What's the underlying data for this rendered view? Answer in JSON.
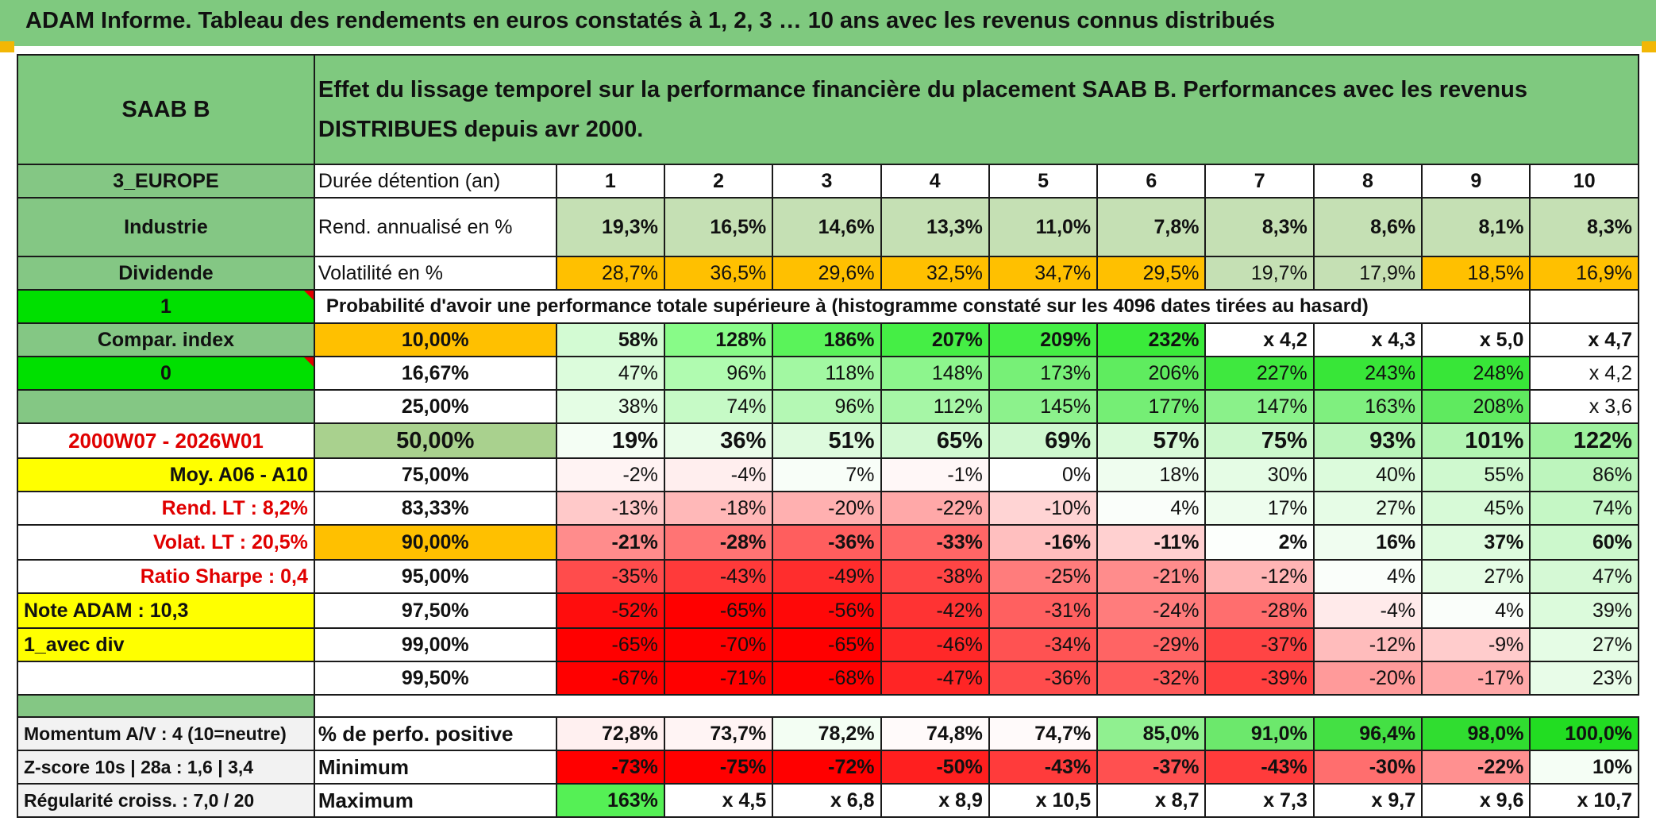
{
  "title": "ADAM Informe. Tableau des rendements en euros constatés à 1, 2, 3 … 10 ans avec les revenus connus distribués",
  "side": {
    "name": "SAAB B",
    "zone": "3_EUROPE",
    "sector": "Industrie",
    "dividend_label": "Dividende",
    "one": "1",
    "compar_label": "Compar. index",
    "zero": "0",
    "period": "2000W07 - 2026W01",
    "moy": "Moy. A06 - A10",
    "rend_lt": "Rend. LT :    8,2%",
    "volat_lt": "Volat. LT :    20,5%",
    "sharpe": "Ratio Sharpe :    0,4",
    "note": "Note ADAM : 10,3",
    "avec_div": "1_avec div",
    "momentum": "Momentum A/V : 4 (10=neutre)",
    "zscore": "Z-score 10s | 28a : 1,6 | 3,4",
    "regularite": "Régularité croiss. : 7,0 / 20"
  },
  "header_desc": "Effet du lissage temporel sur la performance financière du placement SAAB B. Performances avec les revenus DISTRIBUES depuis avr 2000.",
  "row_labels": {
    "duree": "Durée détention (an)",
    "rend": "Rend. annualisé en %",
    "vol": "Volatilité en %",
    "prob": "Probabilité d'avoir une performance totale supérieure à (histogramme constaté sur les 4096 dates tirées au hasard)",
    "pos": "% de perfo. positive",
    "min": "Minimum",
    "max": "Maximum"
  },
  "years": [
    "1",
    "2",
    "3",
    "4",
    "5",
    "6",
    "7",
    "8",
    "9",
    "10"
  ],
  "rend": [
    "19,3%",
    "16,5%",
    "14,6%",
    "13,3%",
    "11,0%",
    "7,8%",
    "8,3%",
    "8,6%",
    "8,1%",
    "8,3%"
  ],
  "vol": [
    "28,7%",
    "36,5%",
    "29,6%",
    "32,5%",
    "34,7%",
    "29,5%",
    "19,7%",
    "17,9%",
    "18,5%",
    "16,9%"
  ],
  "vol_colors": [
    "#ffc000",
    "#ffc000",
    "#ffc000",
    "#ffc000",
    "#ffc000",
    "#ffc000",
    "#c5e0b4",
    "#c5e0b4",
    "#ffc000",
    "#ffc000"
  ],
  "prob": [
    {
      "threshold": "10,00%",
      "values": [
        "58%",
        "128%",
        "186%",
        "207%",
        "209%",
        "232%",
        "x 4,2",
        "x 4,3",
        "x 5,0",
        "x 4,7"
      ],
      "colors": [
        "#d3fbd3",
        "#88fb88",
        "#5af35a",
        "#45ee45",
        "#45ee45",
        "#3aeb3a",
        "#ffffff",
        "#ffffff",
        "#ffffff",
        "#ffffff"
      ]
    },
    {
      "threshold": "16,67%",
      "values": [
        "47%",
        "96%",
        "118%",
        "148%",
        "173%",
        "206%",
        "227%",
        "243%",
        "248%",
        "x 4,2"
      ],
      "colors": [
        "#dcfcdc",
        "#b0fbb0",
        "#a2f8a2",
        "#8df58d",
        "#77f077",
        "#5fec5f",
        "#3fe83f",
        "#38e638",
        "#38e638",
        "#ffffff"
      ]
    },
    {
      "threshold": "25,00%",
      "values": [
        "38%",
        "74%",
        "96%",
        "112%",
        "145%",
        "177%",
        "147%",
        "163%",
        "208%",
        "x 3,6"
      ],
      "colors": [
        "#e4fde4",
        "#c6fac6",
        "#b4f8b4",
        "#a6f6a6",
        "#8cf28c",
        "#75ee75",
        "#8af18a",
        "#7fef7f",
        "#5fea5f",
        "#ffffff"
      ]
    },
    {
      "threshold": "50,00%",
      "values": [
        "19%",
        "36%",
        "51%",
        "65%",
        "69%",
        "57%",
        "75%",
        "93%",
        "101%",
        "122%"
      ],
      "colors": [
        "#f4fef4",
        "#e9fde9",
        "#defbde",
        "#d2f9d2",
        "#cff8cf",
        "#d9fad9",
        "#cbf8cb",
        "#b9f5b9",
        "#b1f4b1",
        "#9ef19e"
      ]
    },
    {
      "threshold": "75,00%",
      "values": [
        "-2%",
        "-4%",
        "7%",
        "-1%",
        "0%",
        "18%",
        "30%",
        "40%",
        "55%",
        "86%"
      ],
      "colors": [
        "#fff3f3",
        "#ffeeee",
        "#f8fef8",
        "#fff7f7",
        "#ffffff",
        "#effdef",
        "#e5fce5",
        "#dcfbdc",
        "#cff9cf",
        "#bdf5bd"
      ]
    },
    {
      "threshold": "83,33%",
      "values": [
        "-13%",
        "-18%",
        "-20%",
        "-22%",
        "-10%",
        "4%",
        "17%",
        "27%",
        "45%",
        "74%"
      ],
      "colors": [
        "#ffc9c9",
        "#ffb8b8",
        "#ffb0b0",
        "#ffa8a8",
        "#ffd4d4",
        "#fafefa",
        "#eefdee",
        "#e6fce6",
        "#d7fad7",
        "#c5f7c5"
      ]
    },
    {
      "threshold": "90,00%",
      "values": [
        "-21%",
        "-28%",
        "-36%",
        "-33%",
        "-16%",
        "-11%",
        "2%",
        "16%",
        "37%",
        "60%"
      ],
      "colors": [
        "#ff8c8c",
        "#ff7474",
        "#ff5e5e",
        "#ff6666",
        "#ffbfbf",
        "#ffd0d0",
        "#fcfffc",
        "#f0fdf0",
        "#defbde",
        "#ccf8cc"
      ]
    },
    {
      "threshold": "95,00%",
      "values": [
        "-35%",
        "-43%",
        "-49%",
        "-38%",
        "-25%",
        "-21%",
        "-12%",
        "4%",
        "27%",
        "47%"
      ],
      "colors": [
        "#ff4c4c",
        "#ff3a3a",
        "#ff2d2d",
        "#ff4545",
        "#ff7c7c",
        "#ff8c8c",
        "#ffb4b4",
        "#fafefa",
        "#e5fce5",
        "#d5f9d5"
      ]
    },
    {
      "threshold": "97,50%",
      "values": [
        "-52%",
        "-65%",
        "-56%",
        "-42%",
        "-31%",
        "-24%",
        "-28%",
        "-4%",
        "4%",
        "39%"
      ],
      "colors": [
        "#ff0d0d",
        "#ff0000",
        "#ff0808",
        "#ff3333",
        "#ff6060",
        "#ff7c7c",
        "#ff6e6e",
        "#ffeaea",
        "#fafefa",
        "#dcfbdc"
      ]
    },
    {
      "threshold": "99,00%",
      "values": [
        "-65%",
        "-70%",
        "-65%",
        "-46%",
        "-34%",
        "-29%",
        "-37%",
        "-12%",
        "-9%",
        "27%"
      ],
      "colors": [
        "#ff0000",
        "#ff0000",
        "#ff0000",
        "#ff2828",
        "#ff5252",
        "#ff6464",
        "#ff4444",
        "#ffbcbc",
        "#ffcccc",
        "#e5fce5"
      ]
    },
    {
      "threshold": "99,50%",
      "values": [
        "-67%",
        "-71%",
        "-68%",
        "-47%",
        "-36%",
        "-32%",
        "-39%",
        "-20%",
        "-17%",
        "23%"
      ],
      "colors": [
        "#ff0000",
        "#ff0000",
        "#ff0000",
        "#ff2525",
        "#ff4c4c",
        "#ff5a5a",
        "#ff3f3f",
        "#ff9a9a",
        "#ffa8a8",
        "#e8fce8"
      ]
    }
  ],
  "pos": [
    "72,8%",
    "73,7%",
    "78,2%",
    "74,8%",
    "74,7%",
    "85,0%",
    "91,0%",
    "96,4%",
    "98,0%",
    "100,0%"
  ],
  "pos_colors": [
    "#fff0f0",
    "#fff4f4",
    "#f3fef3",
    "#fffafa",
    "#fffafa",
    "#90f090",
    "#6ce86c",
    "#44e044",
    "#30dd30",
    "#22dd22"
  ],
  "min": [
    "-73%",
    "-75%",
    "-72%",
    "-50%",
    "-43%",
    "-37%",
    "-43%",
    "-30%",
    "-22%",
    "10%"
  ],
  "min_colors": [
    "#ff0000",
    "#ff0000",
    "#ff0000",
    "#ff1f1f",
    "#ff3b3b",
    "#ff5050",
    "#ff3b3b",
    "#ff6e6e",
    "#ff9090",
    "#f5fef5"
  ],
  "max": [
    "163%",
    "x 4,5",
    "x 6,8",
    "x 8,9",
    "x 10,5",
    "x 8,7",
    "x 7,3",
    "x 9,7",
    "x 9,6",
    "x 10,7"
  ],
  "max_colors": [
    "#55f055",
    "#ffffff",
    "#ffffff",
    "#ffffff",
    "#ffffff",
    "#ffffff",
    "#ffffff",
    "#ffffff",
    "#ffffff",
    "#ffffff"
  ]
}
